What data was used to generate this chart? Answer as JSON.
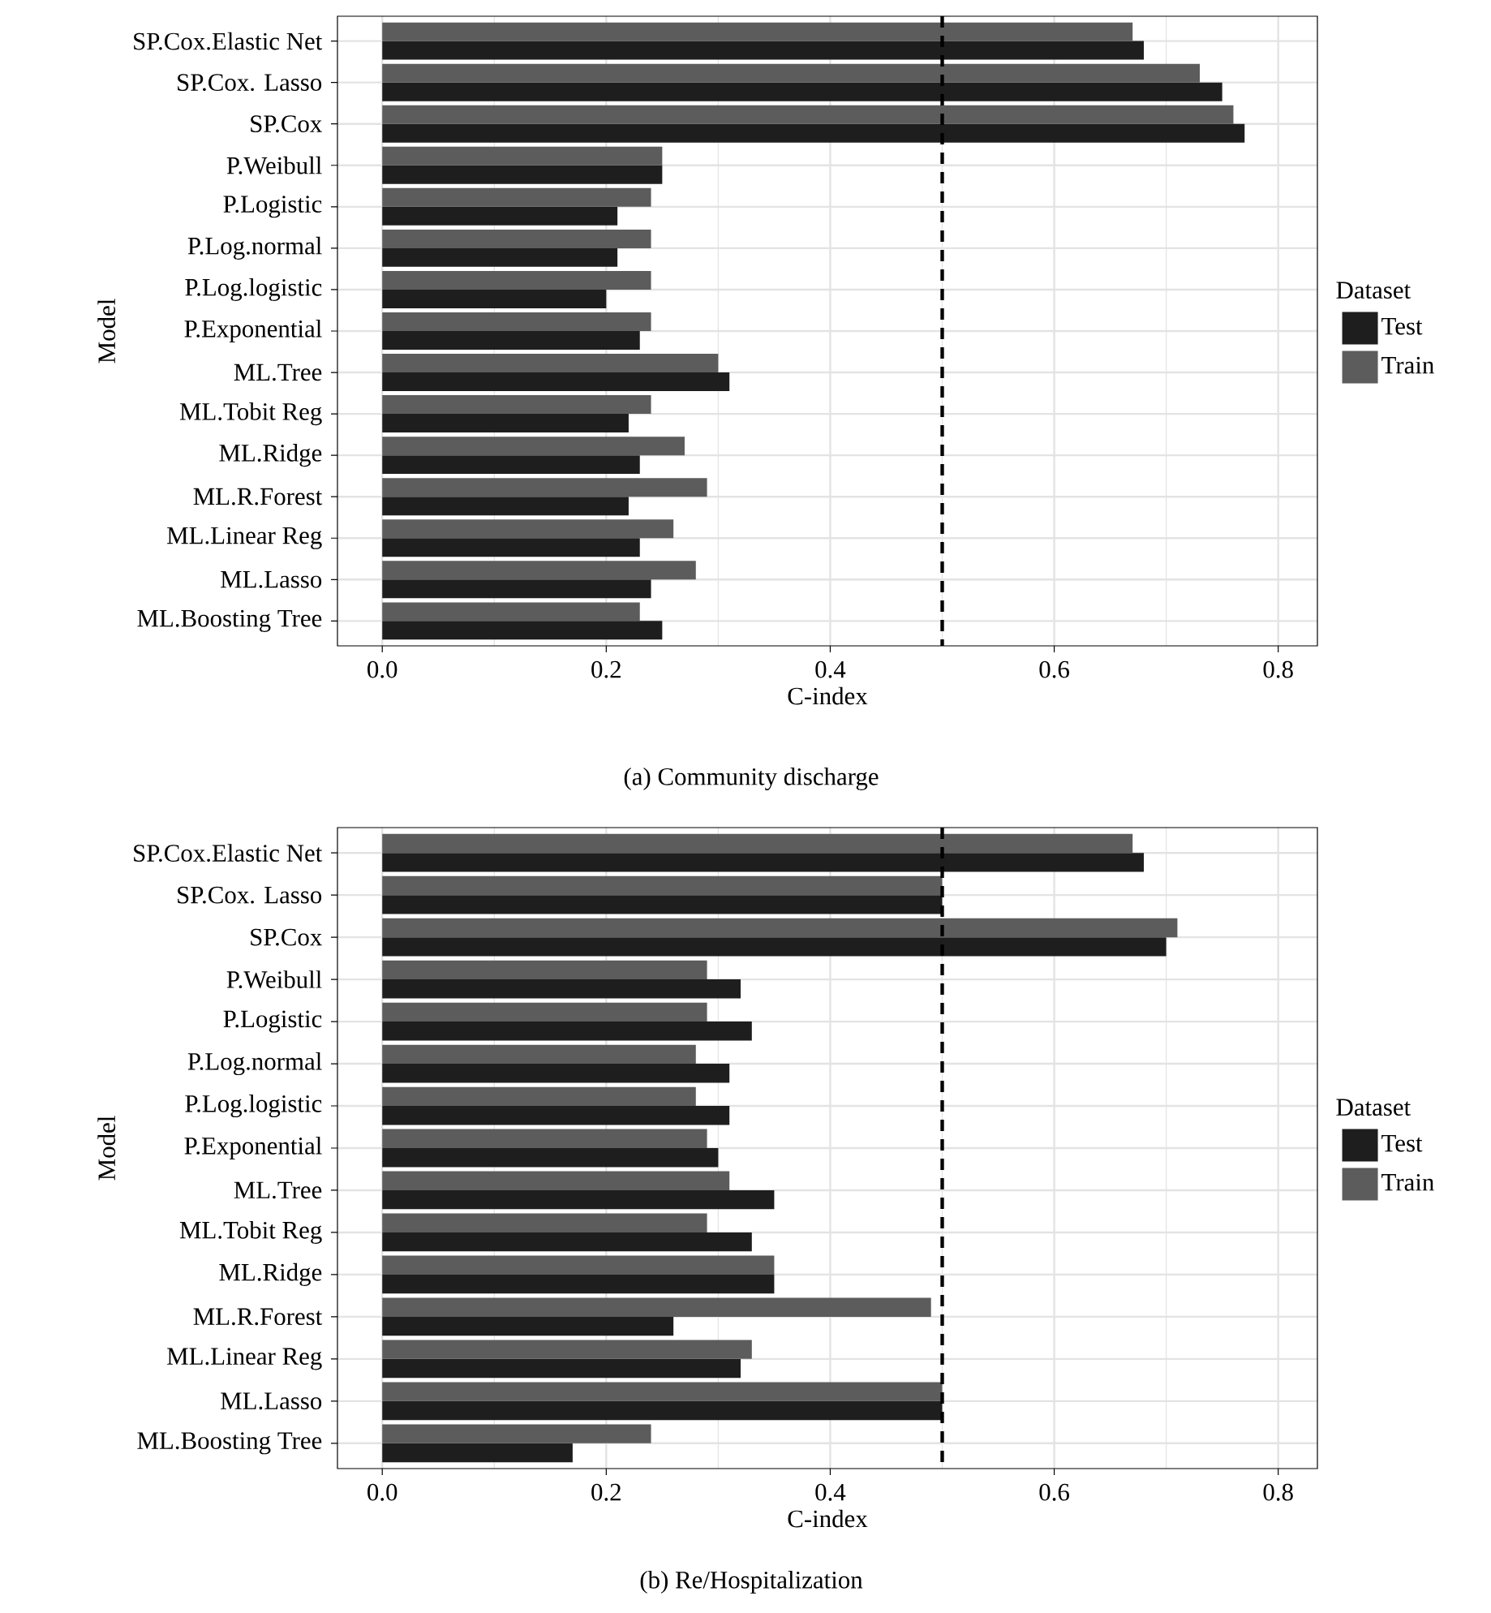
{
  "chart_data": [
    {
      "type": "bar",
      "orientation": "horizontal",
      "xlabel": "C-index",
      "ylabel": "Model",
      "legend_title": "Dataset",
      "legend": "right",
      "grid": true,
      "categories": [
        "SP.Cox.Elastic Net",
        "SP.Cox. Lasso",
        "SP.Cox",
        "P.Weibull",
        "P.Logistic",
        "P.Log.normal",
        "P.Log.logistic",
        "P.Exponential",
        "ML.Tree",
        "ML.Tobit Reg",
        "ML.Ridge",
        "ML.R.Forest",
        "ML.Linear Reg",
        "ML.Lasso",
        "ML.Boosting Tree"
      ],
      "series": [
        {
          "name": "Test",
          "color": "#1e1e1e",
          "values": [
            0.68,
            0.75,
            0.77,
            0.25,
            0.21,
            0.21,
            0.2,
            0.23,
            0.31,
            0.22,
            0.23,
            0.22,
            0.23,
            0.24,
            0.25
          ]
        },
        {
          "name": "Train",
          "color": "#5c5c5c",
          "values": [
            0.67,
            0.73,
            0.76,
            0.25,
            0.24,
            0.24,
            0.24,
            0.24,
            0.3,
            0.24,
            0.27,
            0.29,
            0.26,
            0.28,
            0.23
          ]
        }
      ],
      "xlim": [
        -0.04,
        0.835
      ],
      "xticks": [
        {
          "value": 0,
          "label": "0.0"
        },
        {
          "value": 0.1,
          "label": null
        },
        {
          "value": 0.2,
          "label": "0.2"
        },
        {
          "value": 0.3,
          "label": null
        },
        {
          "value": 0.4,
          "label": "0.4"
        },
        {
          "value": 0.5,
          "label": null
        },
        {
          "value": 0.6,
          "label": "0.6"
        },
        {
          "value": 0.7,
          "label": null
        },
        {
          "value": 0.8,
          "label": "0.8"
        }
      ],
      "ref_lines": [
        {
          "axis": "x",
          "value": 0.5,
          "color": "#000000",
          "line_style": "dashed"
        }
      ],
      "annotations": [
        "(a) Community discharge"
      ]
    },
    {
      "type": "bar",
      "orientation": "horizontal",
      "xlabel": "C-index",
      "ylabel": "Model",
      "legend_title": "Dataset",
      "legend": "right",
      "grid": true,
      "categories": [
        "SP.Cox.Elastic Net",
        "SP.Cox. Lasso",
        "SP.Cox",
        "P.Weibull",
        "P.Logistic",
        "P.Log.normal",
        "P.Log.logistic",
        "P.Exponential",
        "ML.Tree",
        "ML.Tobit Reg",
        "ML.Ridge",
        "ML.R.Forest",
        "ML.Linear Reg",
        "ML.Lasso",
        "ML.Boosting Tree"
      ],
      "series": [
        {
          "name": "Test",
          "color": "#1e1e1e",
          "values": [
            0.68,
            0.5,
            0.7,
            0.32,
            0.33,
            0.31,
            0.31,
            0.3,
            0.35,
            0.33,
            0.35,
            0.26,
            0.32,
            0.5,
            0.17
          ]
        },
        {
          "name": "Train",
          "color": "#5c5c5c",
          "values": [
            0.67,
            0.5,
            0.71,
            0.29,
            0.29,
            0.28,
            0.28,
            0.29,
            0.31,
            0.29,
            0.35,
            0.49,
            0.33,
            0.5,
            0.24
          ]
        }
      ],
      "xlim": [
        -0.04,
        0.835
      ],
      "xticks": [
        {
          "value": 0,
          "label": "0.0"
        },
        {
          "value": 0.1,
          "label": null
        },
        {
          "value": 0.2,
          "label": "0.2"
        },
        {
          "value": 0.3,
          "label": null
        },
        {
          "value": 0.4,
          "label": "0.4"
        },
        {
          "value": 0.5,
          "label": null
        },
        {
          "value": 0.6,
          "label": "0.6"
        },
        {
          "value": 0.7,
          "label": null
        },
        {
          "value": 0.8,
          "label": "0.8"
        }
      ],
      "ref_lines": [
        {
          "axis": "x",
          "value": 0.5,
          "color": "#000000",
          "line_style": "dashed"
        }
      ],
      "annotations": [
        "(b) Re/Hospitalization"
      ]
    }
  ]
}
